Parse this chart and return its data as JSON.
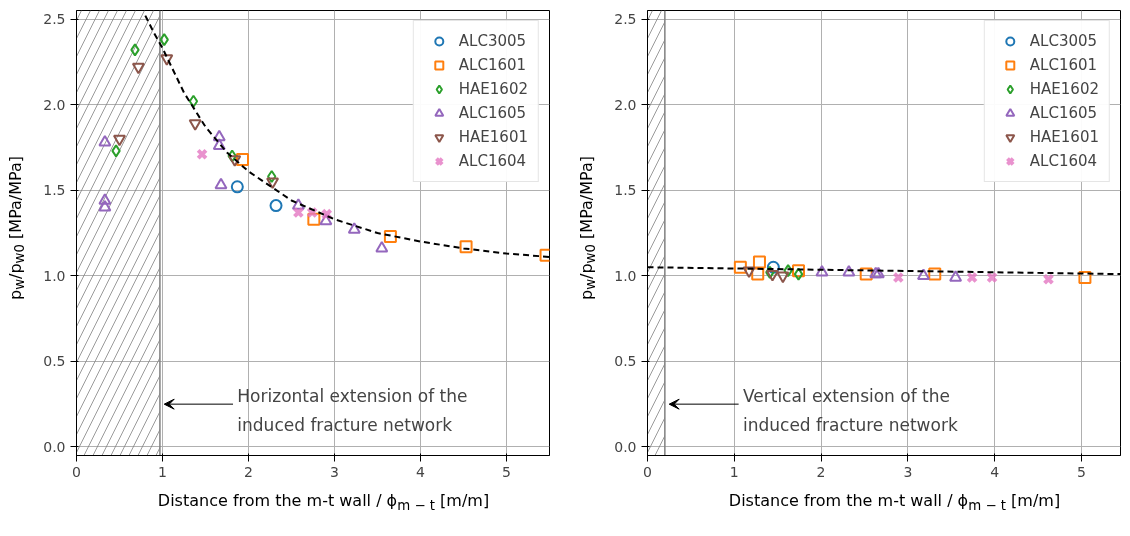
{
  "chart_data": [
    {
      "type": "scatter",
      "xlabel": "Distance from the m-t wall / ϕ$_{m − t}$ [m/m]",
      "ylabel": "p$_{w}$/p$_{w0}$ [MPa/MPa]",
      "xlim": [
        0,
        5.5
      ],
      "ylim": [
        -0.05,
        2.55
      ],
      "xticks": [
        0,
        1,
        2,
        3,
        4,
        5
      ],
      "yticks": [
        {
          "value": 0,
          "label": "0.0"
        },
        0.5,
        {
          "value": 1,
          "label": "1.0"
        },
        1.5,
        {
          "value": 2,
          "label": "2.0"
        },
        2.5
      ],
      "grid": true,
      "legend": "top right",
      "bands": [
        {
          "axis": "x",
          "from": 0,
          "to": 0.97,
          "color": "#808080",
          "label": "Horizontal extension of the\ninduced fracture network"
        }
      ],
      "ref_lines": [
        {
          "axis": "x",
          "value": 0.97,
          "color": "#808080"
        }
      ],
      "series": [
        {
          "name": "ALC3005",
          "color": "#1f77b4",
          "marker": "circle",
          "x": [
            1.87,
            2.32
          ],
          "values": [
            1.52,
            1.41
          ]
        },
        {
          "name": "ALC1601",
          "color": "#ff7f0e",
          "marker": "square",
          "x": [
            1.93,
            2.76,
            3.65,
            4.53,
            5.46
          ],
          "values": [
            1.68,
            1.33,
            1.23,
            1.17,
            1.12
          ]
        },
        {
          "name": "HAE1602",
          "color": "#2ca02c",
          "marker": "diamond",
          "x": [
            0.68,
            1.02,
            0.46,
            1.36,
            1.81,
            2.27
          ],
          "values": [
            2.32,
            2.38,
            1.73,
            2.02,
            1.7,
            1.58
          ]
        },
        {
          "name": "ALC1605",
          "color": "#9467bd",
          "marker": "triangle",
          "x": [
            0.33,
            0.33,
            0.33,
            1.66,
            1.66,
            1.68,
            2.58,
            2.9,
            3.23,
            3.55
          ],
          "values": [
            1.78,
            1.44,
            1.4,
            1.81,
            1.76,
            1.53,
            1.41,
            1.32,
            1.27,
            1.16
          ]
        },
        {
          "name": "HAE1601",
          "color": "#8c564b",
          "marker": "triangle_down",
          "x": [
            0.72,
            1.05,
            0.5,
            1.38,
            1.84,
            2.28
          ],
          "values": [
            2.22,
            2.27,
            1.8,
            1.89,
            1.68,
            1.55
          ]
        },
        {
          "name": "ALC1604",
          "color": "#e377c2",
          "marker": "cross",
          "x": [
            1.46,
            2.58,
            2.74,
            2.91
          ],
          "values": [
            1.71,
            1.37,
            1.37,
            1.36
          ]
        },
        {
          "type": "line",
          "color": "#000000",
          "line_style": "dashed",
          "x": [
            0.8,
            0.9,
            1.0,
            1.25,
            1.5,
            1.75,
            2.0,
            2.5,
            3.0,
            3.5,
            4.0,
            4.5,
            5.0,
            5.5
          ],
          "values": [
            2.52,
            2.42,
            2.33,
            2.07,
            1.87,
            1.72,
            1.61,
            1.44,
            1.33,
            1.25,
            1.2,
            1.16,
            1.13,
            1.11
          ]
        }
      ]
    },
    {
      "type": "scatter",
      "xlabel": "Distance from the m-t wall / ϕ$_{m − t}$ [m/m]",
      "ylabel": "p$_{w}$/p$_{w0}$ [MPa/MPa]",
      "xlim": [
        0,
        5.45
      ],
      "ylim": [
        -0.05,
        2.55
      ],
      "xticks": [
        0,
        1,
        2,
        3,
        4,
        5
      ],
      "yticks": [
        {
          "value": 0,
          "label": "0.0"
        },
        0.5,
        {
          "value": 1,
          "label": "1.0"
        },
        1.5,
        {
          "value": 2,
          "label": "2.0"
        },
        2.5
      ],
      "grid": true,
      "legend": "top right",
      "bands": [
        {
          "axis": "x",
          "from": 0,
          "to": 0.2,
          "color": "#808080",
          "label": "Vertical extension of the\ninduced fracture network"
        }
      ],
      "ref_lines": [
        {
          "axis": "x",
          "value": 0.2,
          "color": "#808080"
        }
      ],
      "series": [
        {
          "name": "ALC3005",
          "color": "#1f77b4",
          "marker": "circle",
          "x": [
            1.45
          ],
          "values": [
            1.05
          ]
        },
        {
          "name": "ALC1601",
          "color": "#ff7f0e",
          "marker": "square",
          "x": [
            1.07,
            1.29,
            1.27,
            1.74,
            2.52,
            3.31,
            5.04
          ],
          "values": [
            1.05,
            1.08,
            1.01,
            1.03,
            1.01,
            1.01,
            0.99
          ]
        },
        {
          "name": "HAE1602",
          "color": "#2ca02c",
          "marker": "diamond",
          "x": [
            1.41,
            1.62,
            1.74
          ],
          "values": [
            1.02,
            1.03,
            1.01
          ]
        },
        {
          "name": "ALC1605",
          "color": "#9467bd",
          "marker": "triangle",
          "x": [
            2.01,
            2.32,
            2.63,
            2.66,
            3.18,
            3.55
          ],
          "values": [
            1.02,
            1.02,
            1.01,
            1.01,
            1.0,
            0.99
          ]
        },
        {
          "name": "HAE1601",
          "color": "#8c564b",
          "marker": "triangle_down",
          "x": [
            1.17,
            1.44,
            1.56
          ],
          "values": [
            1.03,
            1.01,
            1.0
          ]
        },
        {
          "name": "ALC1604",
          "color": "#e377c2",
          "marker": "cross",
          "x": [
            2.89,
            3.74,
            3.97,
            4.62
          ],
          "values": [
            0.99,
            0.99,
            0.99,
            0.98
          ]
        },
        {
          "type": "line",
          "color": "#000000",
          "line_style": "dashed",
          "x": [
            0,
            5.45
          ],
          "values": [
            1.05,
            1.01
          ]
        }
      ]
    }
  ]
}
